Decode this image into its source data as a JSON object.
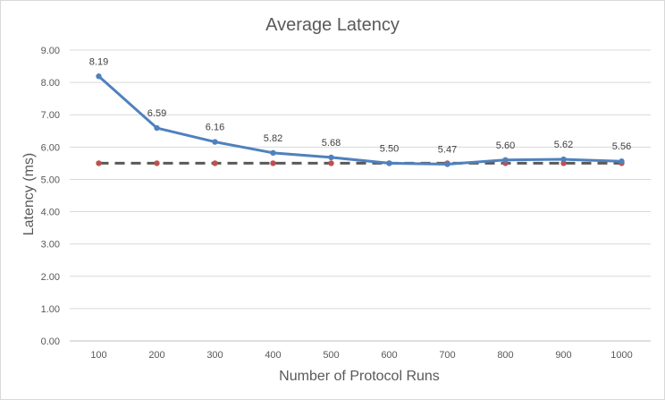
{
  "chart_data": {
    "type": "line",
    "title": "Average Latency",
    "xlabel": "Number of Protocol Runs",
    "ylabel": "Latency (ms)",
    "categories": [
      "100",
      "200",
      "300",
      "400",
      "500",
      "600",
      "700",
      "800",
      "900",
      "1000"
    ],
    "ylim": [
      0,
      9
    ],
    "y_ticks": [
      "0.00",
      "1.00",
      "2.00",
      "3.00",
      "4.00",
      "5.00",
      "6.00",
      "7.00",
      "8.00",
      "9.00"
    ],
    "grid": true,
    "legend": "none",
    "series": [
      {
        "values": [
          8.19,
          6.59,
          6.16,
          5.82,
          5.68,
          5.5,
          5.47,
          5.6,
          5.62,
          5.56
        ],
        "data_labels": [
          "8.19",
          "6.59",
          "6.16",
          "5.82",
          "5.68",
          "5.50",
          "5.47",
          "5.60",
          "5.62",
          "5.56"
        ],
        "color": "#4f81bd",
        "style": "solid"
      },
      {
        "values": [
          5.5,
          5.5,
          5.5,
          5.5,
          5.5,
          5.5,
          5.5,
          5.5,
          5.5,
          5.5
        ],
        "color": "#595959",
        "marker_color": "#c0504d",
        "style": "dashed"
      }
    ]
  }
}
